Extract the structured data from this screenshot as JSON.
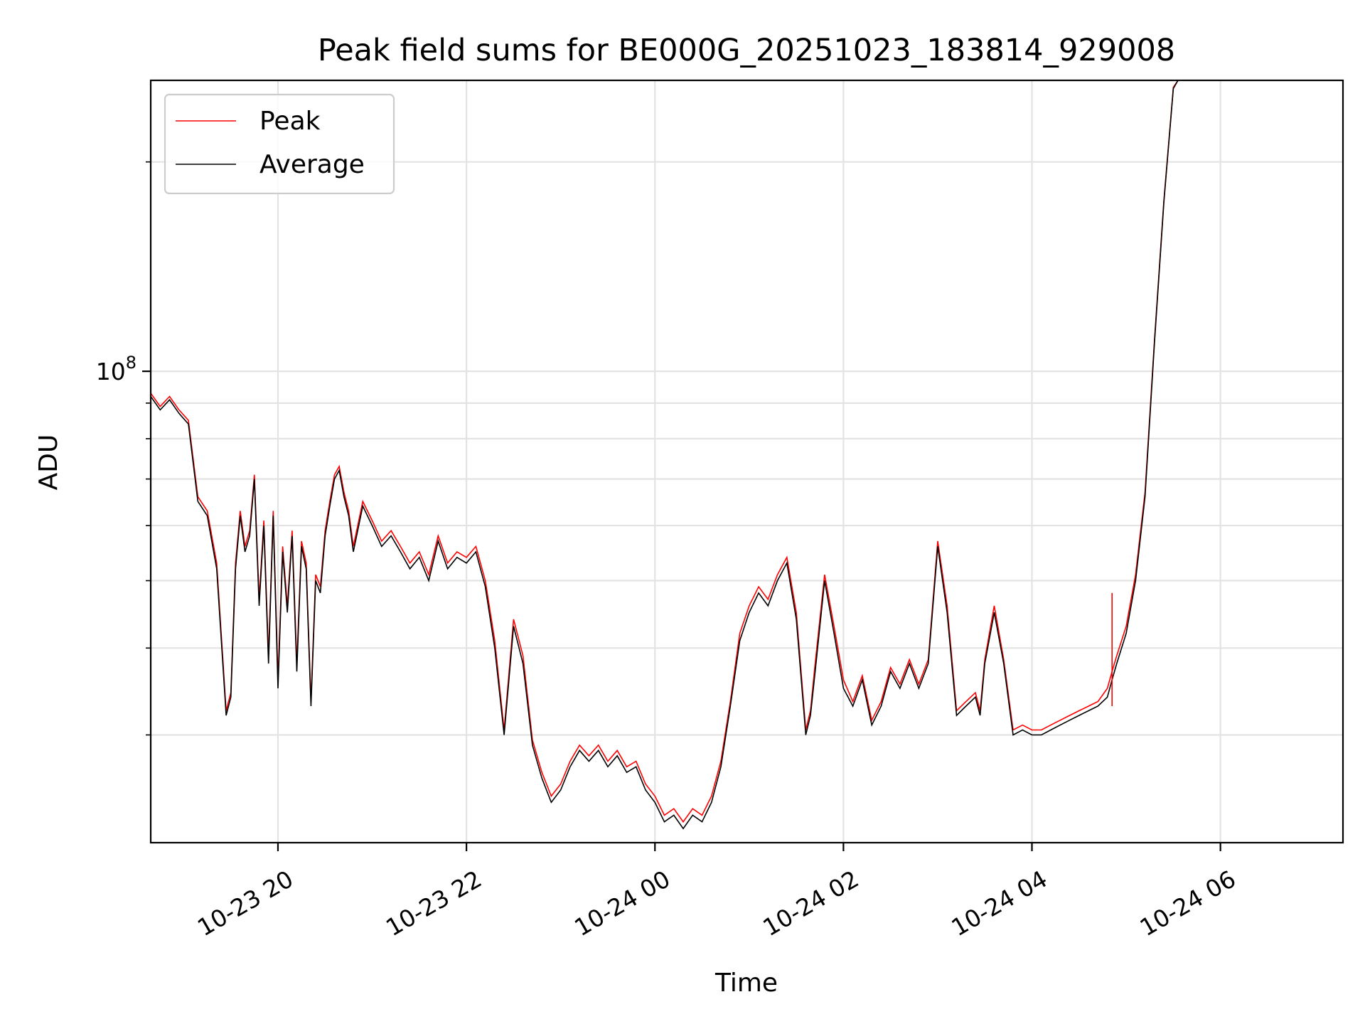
{
  "chart_data": {
    "type": "line",
    "title": "Peak field sums for BE000G_20251023_183814_929008",
    "xlabel": "Time",
    "ylabel": "ADU",
    "yscale": "log",
    "grid": true,
    "legend_position": "top-left",
    "xlim_hours": [
      18.65,
      31.3
    ],
    "ylim": [
      21000000,
      262000000
    ],
    "x_ticks": [
      {
        "hour": 20,
        "label": "10-23 20"
      },
      {
        "hour": 22,
        "label": "10-23 22"
      },
      {
        "hour": 24,
        "label": "10-24 00"
      },
      {
        "hour": 26,
        "label": "10-24 02"
      },
      {
        "hour": 28,
        "label": "10-24 04"
      },
      {
        "hour": 30,
        "label": "10-24 06"
      }
    ],
    "y_major_tick": {
      "value": 100000000,
      "label_base": "10",
      "label_exp": "8"
    },
    "y_minor_ticks": [
      30000000,
      40000000,
      50000000,
      60000000,
      70000000,
      80000000,
      90000000,
      200000000
    ],
    "series": [
      {
        "name": "Peak",
        "color": "#ff0000"
      },
      {
        "name": "Average",
        "color": "#000000"
      }
    ],
    "x_hours": [
      18.65,
      18.75,
      18.85,
      18.95,
      19.05,
      19.15,
      19.25,
      19.35,
      19.45,
      19.5,
      19.55,
      19.6,
      19.65,
      19.7,
      19.75,
      19.8,
      19.85,
      19.9,
      19.95,
      20.0,
      20.05,
      20.1,
      20.15,
      20.2,
      20.25,
      20.3,
      20.35,
      20.4,
      20.45,
      20.5,
      20.55,
      20.6,
      20.65,
      20.7,
      20.75,
      20.8,
      20.9,
      21.0,
      21.1,
      21.2,
      21.3,
      21.4,
      21.5,
      21.6,
      21.7,
      21.8,
      21.9,
      22.0,
      22.1,
      22.2,
      22.3,
      22.4,
      22.5,
      22.6,
      22.7,
      22.8,
      22.9,
      23.0,
      23.1,
      23.2,
      23.3,
      23.4,
      23.5,
      23.6,
      23.7,
      23.8,
      23.9,
      24.0,
      24.1,
      24.2,
      24.3,
      24.4,
      24.5,
      24.6,
      24.7,
      24.8,
      24.9,
      25.0,
      25.1,
      25.2,
      25.3,
      25.4,
      25.5,
      25.6,
      25.65,
      25.7,
      25.8,
      25.9,
      26.0,
      26.1,
      26.2,
      26.3,
      26.4,
      26.5,
      26.6,
      26.7,
      26.8,
      26.9,
      27.0,
      27.1,
      27.2,
      27.3,
      27.4,
      27.45,
      27.5,
      27.6,
      27.7,
      27.8,
      27.9,
      28.0,
      28.1,
      28.2,
      28.3,
      28.4,
      28.5,
      28.6,
      28.7,
      28.8,
      28.85,
      28.9,
      29.0,
      29.1,
      29.2,
      29.3,
      29.4,
      29.5,
      29.55,
      29.6
    ],
    "average": [
      92000000,
      88000000,
      91000000,
      87000000,
      84000000,
      65000000,
      62000000,
      52000000,
      32000000,
      34000000,
      52000000,
      62000000,
      55000000,
      58000000,
      70000000,
      46000000,
      60000000,
      38000000,
      62000000,
      35000000,
      55000000,
      45000000,
      58000000,
      37000000,
      56000000,
      52000000,
      33000000,
      50000000,
      48000000,
      58000000,
      64000000,
      70000000,
      72000000,
      66000000,
      62000000,
      55000000,
      64000000,
      60000000,
      56000000,
      58000000,
      55000000,
      52000000,
      54000000,
      50000000,
      57000000,
      52000000,
      54000000,
      53000000,
      55000000,
      49000000,
      40000000,
      30000000,
      43000000,
      38000000,
      29000000,
      26000000,
      24000000,
      25000000,
      27000000,
      28500000,
      27500000,
      28500000,
      27000000,
      28000000,
      26500000,
      27000000,
      25000000,
      24000000,
      22500000,
      23000000,
      22000000,
      23000000,
      22500000,
      24000000,
      27000000,
      33000000,
      41000000,
      45000000,
      48000000,
      46000000,
      50000000,
      53000000,
      44000000,
      30000000,
      32000000,
      37000000,
      50000000,
      42000000,
      35000000,
      33000000,
      36000000,
      31000000,
      33000000,
      37000000,
      35000000,
      38000000,
      35000000,
      38000000,
      56000000,
      45000000,
      32000000,
      33000000,
      34000000,
      32000000,
      38000000,
      45000000,
      38000000,
      30000000,
      30500000,
      30000000,
      30000000,
      30500000,
      31000000,
      31500000,
      32000000,
      32500000,
      33000000,
      34000000,
      36000000,
      38000000,
      42000000,
      50000000,
      66000000,
      110000000,
      175000000,
      255000000,
      262000000,
      262000000
    ],
    "peak": [
      93000000,
      89000000,
      92000000,
      88000000,
      85000000,
      66000000,
      63000000,
      53000000,
      32500000,
      34500000,
      53000000,
      63000000,
      56000000,
      59000000,
      71000000,
      47000000,
      61000000,
      39000000,
      63000000,
      36000000,
      56000000,
      46000000,
      59000000,
      38000000,
      57000000,
      53000000,
      33500000,
      51000000,
      49000000,
      59000000,
      65000000,
      71000000,
      73000000,
      67000000,
      63000000,
      56000000,
      65000000,
      61000000,
      57000000,
      59000000,
      56000000,
      53000000,
      55000000,
      51000000,
      58000000,
      53000000,
      55000000,
      54000000,
      56000000,
      50000000,
      41000000,
      30500000,
      44000000,
      39000000,
      29500000,
      26500000,
      24500000,
      25500000,
      27500000,
      29000000,
      28000000,
      29000000,
      27500000,
      28500000,
      27000000,
      27500000,
      25500000,
      24500000,
      23000000,
      23500000,
      22500000,
      23500000,
      23000000,
      24500000,
      27500000,
      33500000,
      42000000,
      46000000,
      49000000,
      47000000,
      51000000,
      54000000,
      45000000,
      30500000,
      32500000,
      38000000,
      51000000,
      43000000,
      36000000,
      33500000,
      36500000,
      31500000,
      33500000,
      37500000,
      35500000,
      38500000,
      35500000,
      38500000,
      57000000,
      46000000,
      32500000,
      33500000,
      34500000,
      32500000,
      38500000,
      46000000,
      38500000,
      30500000,
      31000000,
      30500000,
      30500000,
      31000000,
      31500000,
      32000000,
      32500000,
      33000000,
      33500000,
      35000000,
      37000000,
      39000000,
      43000000,
      51000000,
      67000000,
      111000000,
      176000000,
      256000000,
      262000000,
      262000000
    ]
  }
}
